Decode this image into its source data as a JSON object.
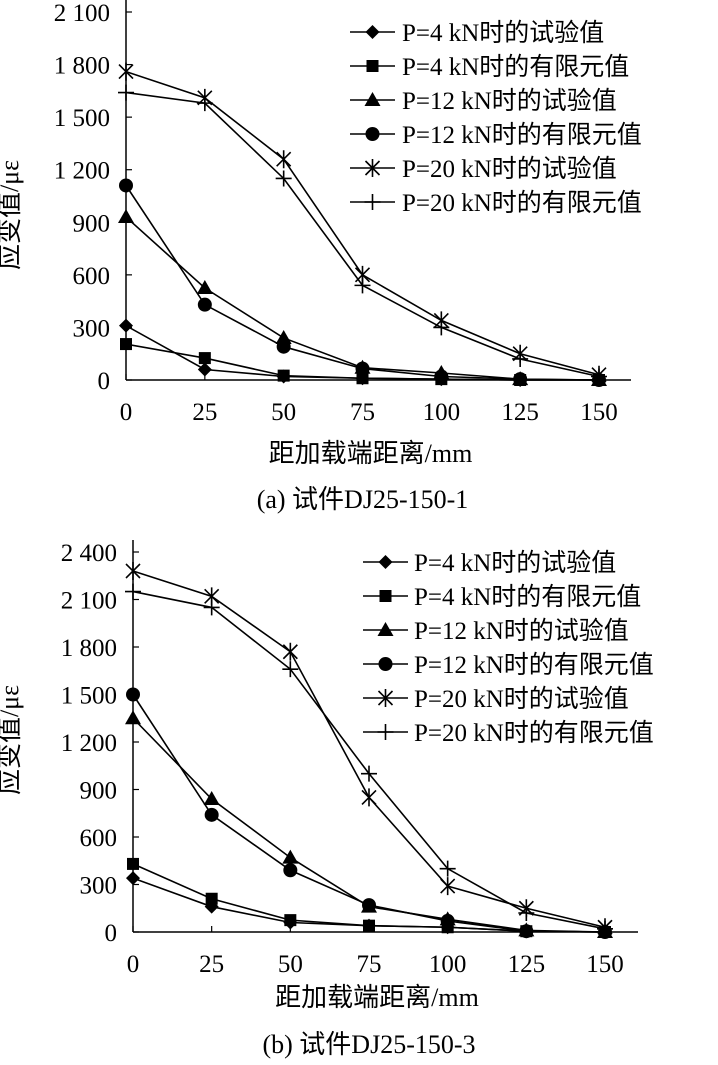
{
  "series_styles": [
    {
      "marker": "diamond",
      "color": "#000000"
    },
    {
      "marker": "square",
      "color": "#000000"
    },
    {
      "marker": "triangle",
      "color": "#000000"
    },
    {
      "marker": "circle",
      "color": "#000000"
    },
    {
      "marker": "star",
      "color": "#000000"
    },
    {
      "marker": "plus",
      "color": "#000000"
    }
  ],
  "chart_data": [
    {
      "type": "line",
      "caption": "(a) 试件DJ25-150-1",
      "xlabel": "距加载端距离/mm",
      "ylabel": "应变值/με",
      "x": [
        0,
        25,
        50,
        75,
        100,
        125,
        150
      ],
      "x_ticks": [
        "0",
        "25",
        "50",
        "75",
        "100",
        "125",
        "150"
      ],
      "y_ticks": [
        0,
        300,
        600,
        900,
        1200,
        1500,
        1800,
        2100
      ],
      "y_tick_labels": [
        "0",
        "300",
        "600",
        "900",
        "1 200",
        "1 500",
        "1 800",
        "2 100"
      ],
      "ylim": [
        0,
        2100
      ],
      "xlim": [
        0,
        150
      ],
      "legend_position": "top-right",
      "grid": false,
      "series": [
        {
          "name": "P=4 kN时的试验值",
          "values": [
            310,
            60,
            20,
            10,
            5,
            0,
            0
          ]
        },
        {
          "name": "P=4 kN时的有限元值",
          "values": [
            205,
            125,
            25,
            10,
            5,
            0,
            0
          ]
        },
        {
          "name": "P=12 kN时的试验值",
          "values": [
            930,
            525,
            240,
            70,
            40,
            5,
            0
          ]
        },
        {
          "name": "P=12 kN时的有限元值",
          "values": [
            1110,
            430,
            190,
            65,
            20,
            5,
            0
          ]
        },
        {
          "name": "P=20 kN时的试验值",
          "values": [
            1760,
            1610,
            1260,
            600,
            340,
            150,
            30
          ]
        },
        {
          "name": "P=20 kN时的有限元值",
          "values": [
            1640,
            1580,
            1150,
            540,
            300,
            120,
            20
          ]
        }
      ]
    },
    {
      "type": "line",
      "caption": "(b) 试件DJ25-150-3",
      "xlabel": "距加载端距离/mm",
      "ylabel": "应变值/με",
      "x": [
        0,
        25,
        50,
        75,
        100,
        125,
        150
      ],
      "x_ticks": [
        "0",
        "25",
        "50",
        "75",
        "100",
        "125",
        "150"
      ],
      "y_ticks": [
        0,
        300,
        600,
        900,
        1200,
        1500,
        1800,
        2100,
        2400
      ],
      "y_tick_labels": [
        "0",
        "300",
        "600",
        "900",
        "1 200",
        "1 500",
        "1 800",
        "2 100",
        "2 400"
      ],
      "ylim": [
        0,
        2400
      ],
      "xlim": [
        0,
        150
      ],
      "legend_position": "top-right",
      "grid": false,
      "series": [
        {
          "name": "P=4 kN时的试验值",
          "values": [
            340,
            160,
            60,
            40,
            30,
            5,
            0
          ]
        },
        {
          "name": "P=4 kN时的有限元值",
          "values": [
            430,
            210,
            75,
            40,
            30,
            5,
            0
          ]
        },
        {
          "name": "P=12 kN时的试验值",
          "values": [
            1350,
            840,
            470,
            160,
            80,
            10,
            0
          ]
        },
        {
          "name": "P=12 kN时的有限元值",
          "values": [
            1500,
            740,
            390,
            170,
            70,
            5,
            0
          ]
        },
        {
          "name": "P=20 kN时的试验值",
          "values": [
            2280,
            2120,
            1770,
            850,
            290,
            150,
            30
          ]
        },
        {
          "name": "P=20 kN时的有限元值",
          "values": [
            2150,
            2050,
            1660,
            1000,
            400,
            120,
            20
          ]
        }
      ]
    }
  ]
}
